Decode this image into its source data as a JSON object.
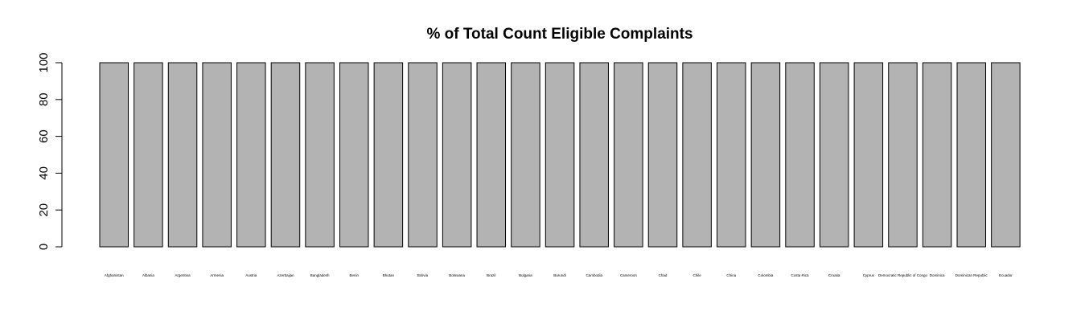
{
  "chart_data": {
    "type": "bar",
    "title": "% of Total Count Eligible Complaints",
    "xlabel": "",
    "ylabel": "",
    "ylim": [
      0,
      100
    ],
    "yticks": [
      0,
      20,
      40,
      60,
      80,
      100
    ],
    "grid": false,
    "legend": "none",
    "bar_color": "#b3b3b3",
    "bar_border_color": "#000000",
    "categories": [
      "Afghanistan",
      "Albania",
      "Argentina",
      "Armenia",
      "Austria",
      "Azerbaijan",
      "Bangladesh",
      "Benin",
      "Bhutan",
      "Bolivia",
      "Botswana",
      "Brazil",
      "Bulgaria",
      "Burundi",
      "Cambodia",
      "Cameroon",
      "Chad",
      "Chile",
      "China",
      "Colombia",
      "Costa Rica",
      "Croatia",
      "Cyprus",
      "Democratic Republic of Congo",
      "Dominica",
      "Dominican Republic",
      "Ecuador"
    ],
    "values": [
      100,
      100,
      100,
      100,
      100,
      100,
      100,
      100,
      100,
      100,
      100,
      100,
      100,
      100,
      100,
      100,
      100,
      100,
      100,
      100,
      100,
      100,
      100,
      100,
      100,
      100,
      100
    ]
  }
}
